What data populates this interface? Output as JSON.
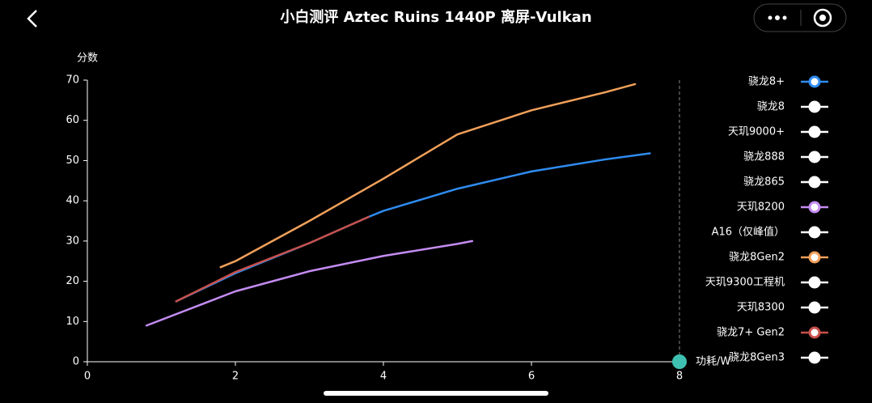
{
  "chart_data": {
    "type": "line",
    "title": "小白测评 Aztec Ruins 1440P 离屏-Vulkan",
    "y_label": "分数",
    "x_label": "功耗/W",
    "xlim": [
      0,
      8
    ],
    "xticks": [
      0,
      2,
      4,
      6,
      8
    ],
    "ylim": [
      0,
      70
    ],
    "yticks": [
      0,
      10,
      20,
      30,
      40,
      50,
      60,
      70
    ],
    "series": [
      {
        "name": "骁龙8+",
        "color": "#2f8cf0",
        "visible": true,
        "x": [
          1.2,
          2,
          3,
          3.8,
          4,
          5,
          6,
          7,
          7.6
        ],
        "values": [
          15,
          22,
          29.5,
          36,
          37.5,
          43,
          47.3,
          50.3,
          51.8
        ]
      },
      {
        "name": "骁龙8",
        "color": "#ffffff",
        "visible": false,
        "x": [],
        "values": []
      },
      {
        "name": "天玑9000+",
        "color": "#ffffff",
        "visible": false,
        "x": [],
        "values": []
      },
      {
        "name": "骁龙888",
        "color": "#ffffff",
        "visible": false,
        "x": [],
        "values": []
      },
      {
        "name": "骁龙865",
        "color": "#ffffff",
        "visible": false,
        "x": [],
        "values": []
      },
      {
        "name": "天玑8200",
        "color": "#c48cf2",
        "visible": true,
        "x": [
          0.8,
          2,
          3,
          4,
          5,
          5.2
        ],
        "values": [
          9,
          17.5,
          22.5,
          26.3,
          29.3,
          30
        ]
      },
      {
        "name": "A16（仅峰值）",
        "color": "#ffffff",
        "visible": false,
        "x": [],
        "values": []
      },
      {
        "name": "骁龙8Gen2",
        "color": "#f0a05a",
        "visible": true,
        "x": [
          1.8,
          2,
          3,
          4,
          5,
          6,
          7,
          7.4
        ],
        "values": [
          23.5,
          25,
          35,
          45.5,
          56.5,
          62.5,
          67,
          69
        ]
      },
      {
        "name": "天玑9300工程机",
        "color": "#ffffff",
        "visible": false,
        "x": [],
        "values": []
      },
      {
        "name": "天玑8300",
        "color": "#ffffff",
        "visible": false,
        "x": [],
        "values": []
      },
      {
        "name": "骁龙7+ Gen2",
        "color": "#c8504a",
        "visible": true,
        "x": [
          1.2,
          2,
          3,
          3.8
        ],
        "values": [
          15,
          22.3,
          29.5,
          36
        ]
      },
      {
        "name": "骁龙8Gen3",
        "color": "#ffffff",
        "visible": false,
        "x": [],
        "values": []
      }
    ]
  }
}
